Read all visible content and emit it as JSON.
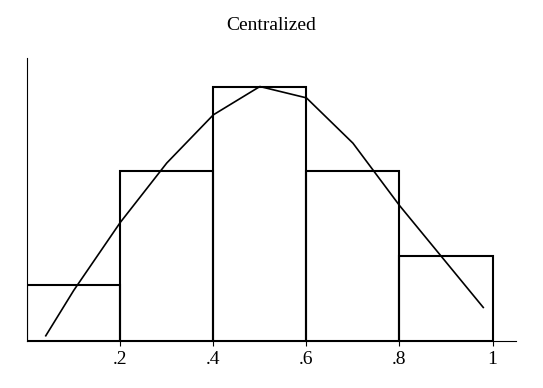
{
  "chart_data": {
    "type": "histogram",
    "title": "Centralized",
    "bins": [
      0,
      0.2,
      0.4,
      0.6,
      0.8,
      1.0
    ],
    "counts": [
      2,
      6,
      9,
      6,
      3
    ],
    "color": "#000000",
    "series": [
      {
        "type": "line",
        "color": "#000000",
        "line_style": "solid",
        "x": [
          0.04,
          0.1,
          0.2,
          0.3,
          0.4,
          0.5,
          0.6,
          0.7,
          0.8,
          0.9,
          0.98
        ],
        "values": [
          0.2,
          1.8,
          4.2,
          6.3,
          8,
          9,
          8.6,
          7,
          4.8,
          2.8,
          1.2
        ]
      }
    ],
    "xlim": [
      0,
      1.05
    ],
    "xticks": [
      {
        "value": 0.2,
        "label": ".2"
      },
      {
        "value": 0.4,
        "label": ".4"
      },
      {
        "value": 0.6,
        "label": ".6"
      },
      {
        "value": 0.8,
        "label": ".8"
      },
      1
    ],
    "ylim": [
      0,
      10
    ],
    "yticks": [],
    "tick_labels": "x",
    "grid": false
  }
}
